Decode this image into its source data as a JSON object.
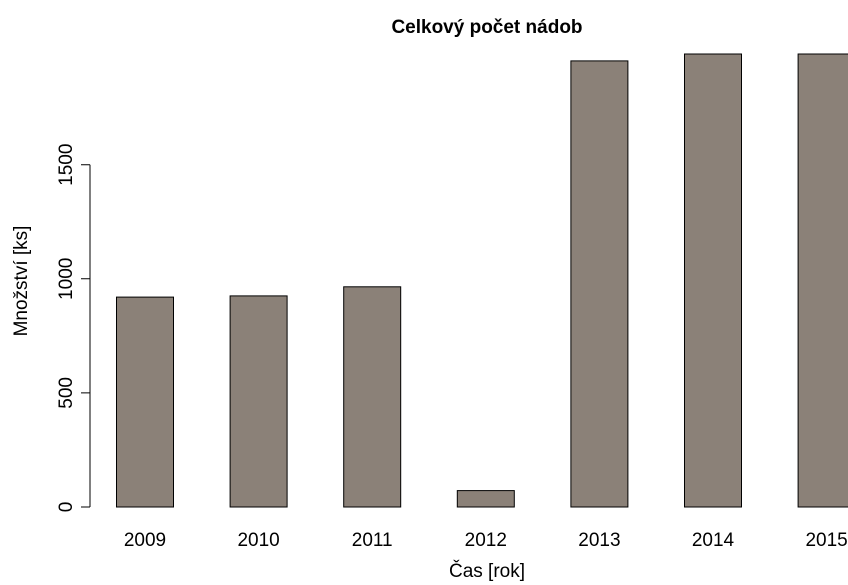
{
  "chart_data": {
    "type": "bar",
    "title": "Celkový počet nádob",
    "xlabel": "Čas [rok]",
    "ylabel": "Množství [ks]",
    "categories": [
      "2009",
      "2010",
      "2011",
      "2012",
      "2013",
      "2014",
      "2015"
    ],
    "values": [
      920,
      925,
      965,
      72,
      1955,
      1985,
      1985
    ],
    "ylim": [
      0,
      2000
    ],
    "yticks": [
      0,
      500,
      1000,
      1500
    ],
    "grid": false,
    "bar_color": "#8b8178"
  }
}
